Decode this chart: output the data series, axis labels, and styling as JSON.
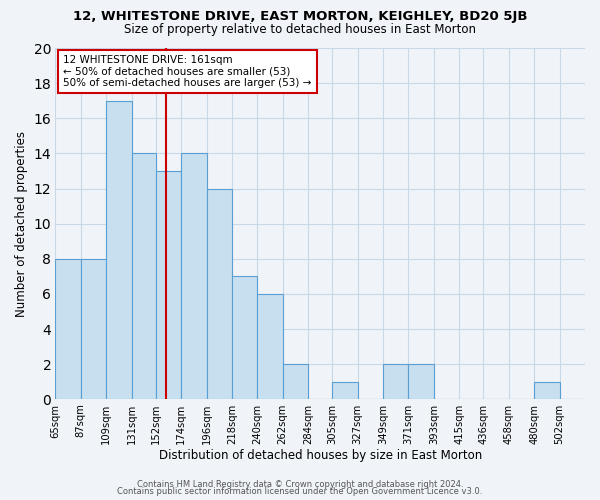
{
  "title": "12, WHITESTONE DRIVE, EAST MORTON, KEIGHLEY, BD20 5JB",
  "subtitle": "Size of property relative to detached houses in East Morton",
  "xlabel": "Distribution of detached houses by size in East Morton",
  "ylabel": "Number of detached properties",
  "bar_color": "#c8dff0",
  "bar_edge_color": "#5a9fd4",
  "categories": [
    "65sqm",
    "87sqm",
    "109sqm",
    "131sqm",
    "152sqm",
    "174sqm",
    "196sqm",
    "218sqm",
    "240sqm",
    "262sqm",
    "284sqm",
    "305sqm",
    "327sqm",
    "349sqm",
    "371sqm",
    "393sqm",
    "415sqm",
    "436sqm",
    "458sqm",
    "480sqm",
    "502sqm"
  ],
  "values": [
    8,
    8,
    17,
    14,
    13,
    14,
    12,
    7,
    6,
    2,
    0,
    1,
    0,
    2,
    2,
    0,
    0,
    0,
    0,
    1,
    0
  ],
  "bin_edges_sqm": [
    65,
    87,
    109,
    131,
    152,
    174,
    196,
    218,
    240,
    262,
    284,
    305,
    327,
    349,
    371,
    393,
    415,
    436,
    458,
    480,
    502,
    524
  ],
  "property_sqm": 161,
  "property_line_label": "12 WHITESTONE DRIVE: 161sqm",
  "annotation_line1": "← 50% of detached houses are smaller (53)",
  "annotation_line2": "50% of semi-detached houses are larger (53) →",
  "annotation_box_color": "#ffffff",
  "annotation_box_edge_color": "#cc0000",
  "property_line_color": "#cc0000",
  "ylim": [
    0,
    20
  ],
  "yticks": [
    0,
    2,
    4,
    6,
    8,
    10,
    12,
    14,
    16,
    18,
    20
  ],
  "footer_line1": "Contains HM Land Registry data © Crown copyright and database right 2024.",
  "footer_line2": "Contains public sector information licensed under the Open Government Licence v3.0.",
  "grid_color": "#c8d8e8",
  "background_color": "#f0f4f8"
}
